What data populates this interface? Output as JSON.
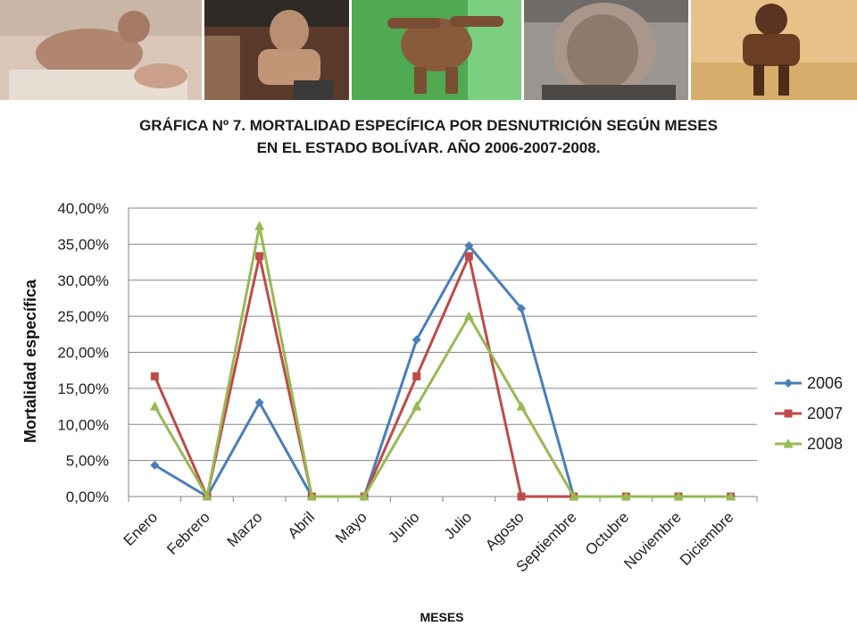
{
  "title_line1": "GRÁFICA Nº 7. MORTALIDAD ESPECÍFICA POR DESNUTRICIÓN SEGÚN MESES",
  "title_line2": "EN EL ESTADO BOLÍVAR.  AÑO 2006-2007-2008.",
  "colors": {
    "s2006": "#4a7ebb",
    "s2007": "#be4b48",
    "s2008": "#98b954",
    "grid": "#868686"
  },
  "chart_data": {
    "type": "line",
    "categories": [
      "Enero",
      "Febrero",
      "Marzo",
      "Abril",
      "Mayo",
      "Junio",
      "Julio",
      "Agosto",
      "Septiembre",
      "Octubre",
      "Noviembre",
      "Diciembre"
    ],
    "series": [
      {
        "name": "2006",
        "marker": "diamond",
        "values": [
          4.35,
          0,
          13.04,
          0,
          0,
          21.74,
          34.78,
          26.09,
          0,
          0,
          0,
          0
        ]
      },
      {
        "name": "2007",
        "marker": "square",
        "values": [
          16.67,
          0,
          33.33,
          0,
          0,
          16.67,
          33.33,
          0,
          0,
          0,
          0,
          0
        ]
      },
      {
        "name": "2008",
        "marker": "triangle",
        "values": [
          12.5,
          0,
          37.5,
          0,
          0,
          12.5,
          25.0,
          12.5,
          0,
          0,
          0,
          0
        ]
      }
    ],
    "xlabel": "MESES",
    "ylabel": "Mortalidad específica",
    "ylim": [
      0,
      40
    ],
    "yticks": [
      "0,00%",
      "5,00%",
      "10,00%",
      "15,00%",
      "20,00%",
      "25,00%",
      "30,00%",
      "35,00%",
      "40,00%"
    ],
    "grid": true,
    "legend_position": "right"
  }
}
